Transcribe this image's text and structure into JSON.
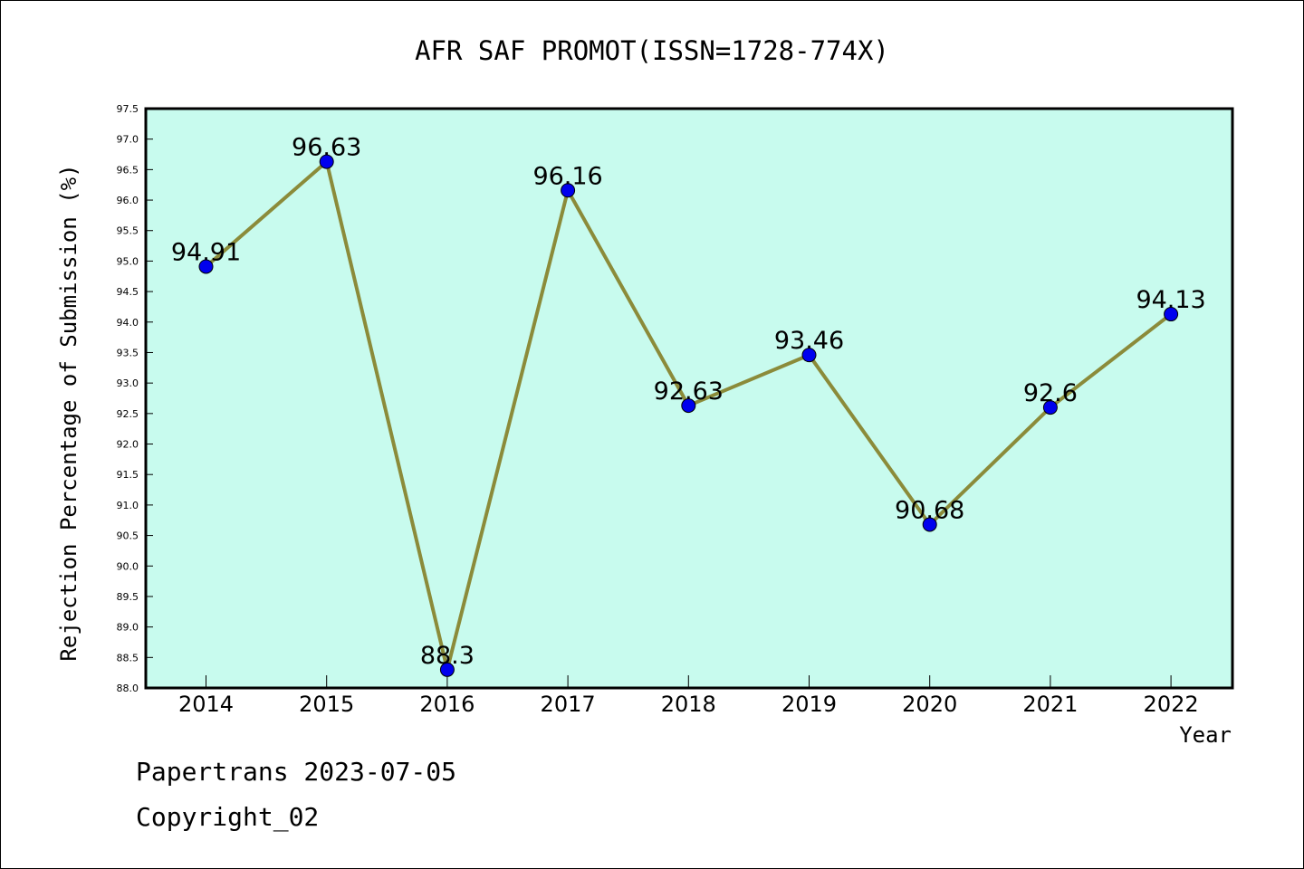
{
  "chart_data": {
    "type": "line",
    "title": "AFR SAF PROMOT(ISSN=1728-774X)",
    "xlabel": "Year",
    "ylabel": "Rejection Percentage of Submission (%)",
    "categories": [
      "2014",
      "2015",
      "2016",
      "2017",
      "2018",
      "2019",
      "2020",
      "2021",
      "2022"
    ],
    "values": [
      94.91,
      96.63,
      88.3,
      96.16,
      92.63,
      93.46,
      90.68,
      92.6,
      94.13
    ],
    "data_labels": [
      "94.91",
      "96.63",
      "88.3",
      "96.16",
      "92.63",
      "93.46",
      "90.68",
      "92.6",
      "94.13"
    ],
    "ylim": [
      88.0,
      97.5
    ],
    "yticks": [
      "88.0",
      "88.5",
      "89.0",
      "89.5",
      "90.0",
      "90.5",
      "91.0",
      "91.5",
      "92.0",
      "92.5",
      "93.0",
      "93.5",
      "94.0",
      "94.5",
      "95.0",
      "95.5",
      "96.0",
      "96.5",
      "97.0",
      "97.5"
    ],
    "grid": false,
    "colors": {
      "plot_background": "#c8fbee",
      "line": "#8b8b3a",
      "marker": "#0000ee"
    }
  },
  "footer": {
    "line1": "Papertrans 2023-07-05",
    "line2": "Copyright_02"
  }
}
